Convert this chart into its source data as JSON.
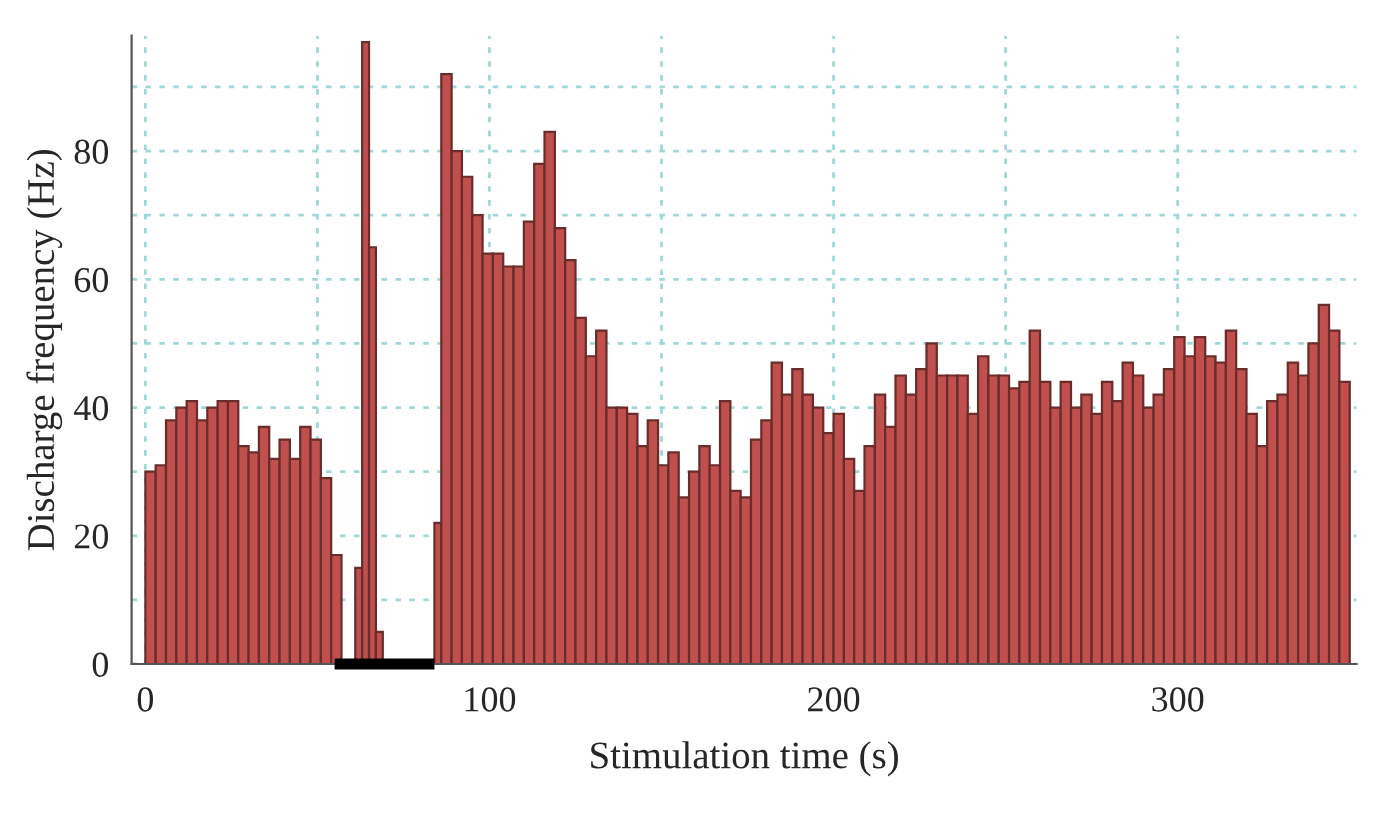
{
  "chart_data": {
    "type": "histogram",
    "xlabel": "Stimulation time (s)",
    "ylabel": "Discharge frequency (Hz)",
    "bins": [
      0,
      3,
      6,
      9,
      12,
      15,
      18,
      21,
      24,
      27,
      30,
      33,
      36,
      39,
      42,
      45,
      48,
      51,
      54,
      57,
      61,
      63,
      65,
      67,
      69,
      84,
      86,
      89,
      92,
      95,
      98,
      101,
      104,
      107,
      110,
      113,
      116,
      119,
      122,
      125,
      128,
      131,
      134,
      137,
      140,
      143,
      146,
      149,
      152,
      155,
      158,
      161,
      164,
      167,
      170,
      173,
      176,
      179,
      182,
      185,
      188,
      191,
      194,
      197,
      200,
      203,
      206,
      209,
      212,
      215,
      218,
      221,
      224,
      227,
      230,
      233,
      236,
      239,
      242,
      245,
      248,
      251,
      254,
      257,
      260,
      263,
      266,
      269,
      272,
      275,
      278,
      281,
      284,
      287,
      290,
      293,
      296,
      299,
      302,
      305,
      308,
      311,
      314,
      317,
      320,
      323,
      326,
      329,
      332,
      335,
      338,
      341,
      344,
      347,
      350
    ],
    "values": [
      30,
      31,
      38,
      40,
      41,
      38,
      40,
      41,
      41,
      34,
      33,
      37,
      32,
      35,
      32,
      37,
      35,
      29,
      17,
      0,
      15,
      97,
      65,
      5,
      0,
      22,
      92,
      80,
      76,
      70,
      64,
      64,
      62,
      62,
      69,
      78,
      83,
      68,
      63,
      54,
      48,
      52,
      40,
      40,
      39,
      34,
      38,
      31,
      33,
      26,
      30,
      34,
      31,
      41,
      27,
      26,
      35,
      38,
      47,
      42,
      46,
      42,
      40,
      36,
      39,
      32,
      27,
      34,
      42,
      37,
      45,
      42,
      46,
      50,
      45,
      45,
      45,
      39,
      48,
      45,
      45,
      43,
      44,
      52,
      44,
      40,
      44,
      40,
      42,
      39,
      44,
      41,
      47,
      45,
      40,
      42,
      46,
      51,
      48,
      51,
      48,
      47,
      52,
      46,
      39,
      34,
      41,
      42,
      47,
      45,
      50,
      56,
      52,
      44
    ],
    "color": "#c0504d",
    "xlim": [
      -4,
      352
    ],
    "ylim": [
      0,
      98
    ],
    "xticks": [
      0,
      {
        "value": 50,
        "label": null
      },
      100,
      {
        "value": 150,
        "label": null
      },
      200,
      {
        "value": 250,
        "label": null
      },
      300
    ],
    "yticks": [
      0,
      {
        "value": 10,
        "label": null
      },
      20,
      {
        "value": 30,
        "label": null
      },
      40,
      {
        "value": 50,
        "label": null
      },
      60,
      {
        "value": 70,
        "label": null
      },
      80,
      {
        "value": 90,
        "label": null
      }
    ],
    "series": [
      {
        "type": "line",
        "x": [
          55,
          84
        ],
        "values": [
          0,
          0
        ],
        "color": "#000000"
      }
    ],
    "grid": true
  }
}
